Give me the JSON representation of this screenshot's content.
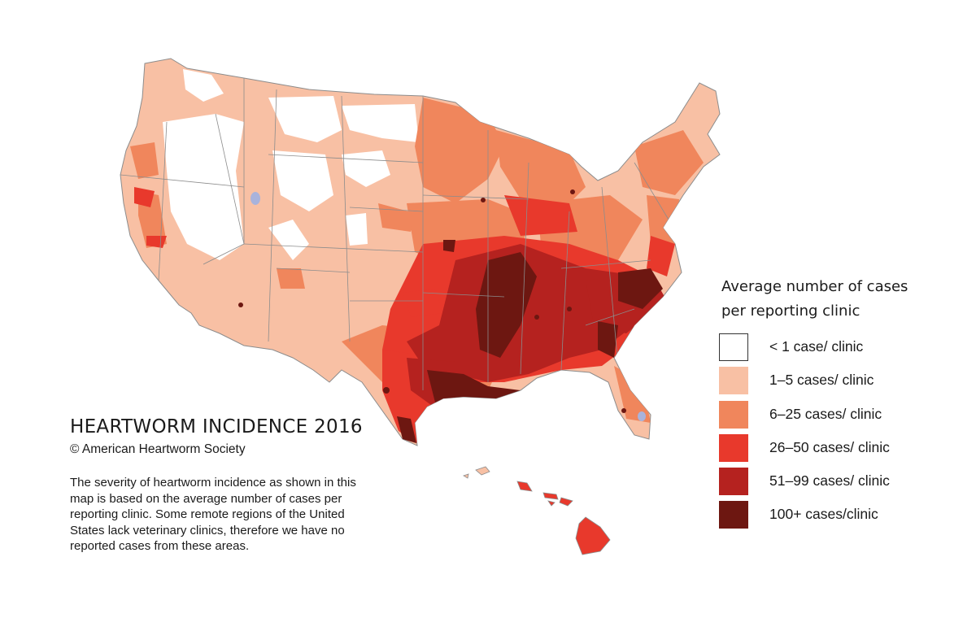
{
  "title": "HEARTWORM INCIDENCE 2016",
  "copyright": "© American Heartworm Society",
  "description_lines": [
    "The severity of heartworm incidence as shown in this",
    "map is based on the average number of cases per",
    "reporting clinic.  Some remote regions of the United",
    "States lack veterinary clinics, therefore we have no",
    "reported cases from these areas."
  ],
  "legend": {
    "title_lines": [
      "Average number of cases",
      "per reporting clinic"
    ],
    "items": [
      {
        "label": "< 1 case/ clinic",
        "color": "#ffffff"
      },
      {
        "label": "1–5 cases/ clinic",
        "color": "#f8c0a4"
      },
      {
        "label": "6–25  cases/ clinic",
        "color": "#f0865c"
      },
      {
        "label": "26–50  cases/ clinic",
        "color": "#e8392c"
      },
      {
        "label": "51–99 cases/ clinic",
        "color": "#b5221f"
      },
      {
        "label": "100+ cases/clinic",
        "color": "#6d1711"
      }
    ]
  },
  "map_colors": {
    "none": "#ffffff",
    "low": "#f8c0a4",
    "moderate": "#f0865c",
    "high": "#e8392c",
    "very_high": "#b5221f",
    "extreme": "#6d1711",
    "no_data": "#a9b3dc",
    "border": "#8c8c8c"
  }
}
